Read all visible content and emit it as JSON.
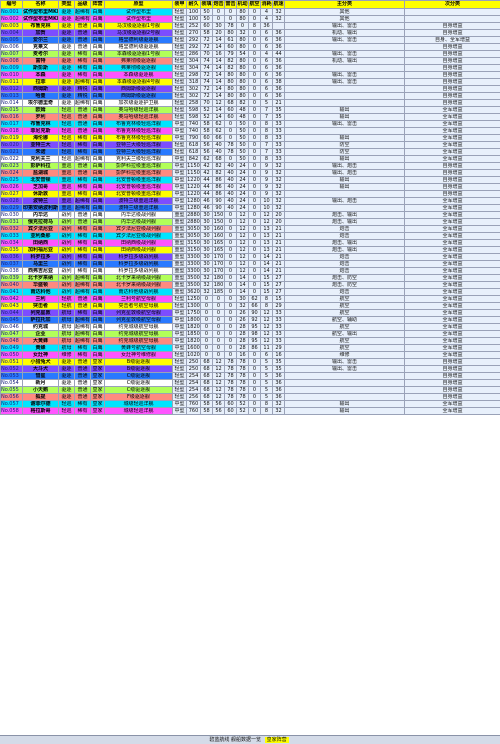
{
  "sheet": {
    "headers": [
      "编号",
      "名称",
      "类型",
      "品级",
      "阵营",
      "原型",
      "装甲",
      "耐久",
      "装填",
      "炮击",
      "雷击",
      "机动",
      "航空",
      "消耗",
      "航速",
      "主分类",
      "次分类"
    ],
    "rows": [
      [
        "No.001",
        "试作型布里MKII",
        "驱逐",
        "超稀有",
        "白鹰",
        "试作型布里",
        "轻型",
        "100",
        "50",
        "0",
        "0",
        "80",
        "0",
        "4",
        "32",
        "其他",
        ""
      ],
      [
        "No.002",
        "试作型布里MKIII",
        "驱逐",
        "超稀有",
        "白鹰",
        "试作型布里",
        "轻型",
        "100",
        "50",
        "0",
        "0",
        "80",
        "0",
        "4",
        "32",
        "其他",
        ""
      ],
      [
        "No.003",
        "布鲁克林",
        "驱逐",
        "普通",
        "白鹰",
        "马汉级驱逐舰1号舰",
        "轻型",
        "252",
        "60",
        "30",
        "78",
        "0",
        "8",
        "36",
        "",
        "输出、雷击",
        "自身增益"
      ],
      [
        "No.004",
        "加贺",
        "驱逐",
        "普通",
        "白鹰",
        "马汉级驱逐舰2号舰",
        "轻型",
        "270",
        "58",
        "20",
        "80",
        "32",
        "0",
        "6",
        "36",
        "机动、输出",
        "自身增益"
      ],
      [
        "No.005",
        "爱尔兰",
        "驱逐",
        "普通",
        "白鹰",
        "格里德利级驱逐舰",
        "轻型",
        "292",
        "72",
        "14",
        "61",
        "80",
        "0",
        "6",
        "36",
        "输出、雷击",
        "自身、全军增益"
      ],
      [
        "No.006",
        "克莱文",
        "驱逐",
        "普通",
        "白鹰",
        "格里德利级驱逐舰",
        "轻型",
        "292",
        "72",
        "14",
        "60",
        "80",
        "0",
        "6",
        "36",
        "",
        "自身增益"
      ],
      [
        "No.007",
        "麦考尔",
        "驱逐",
        "稀有",
        "白鹰",
        "本森级驱逐舰1号舰",
        "轻型",
        "286",
        "70",
        "16",
        "79",
        "54",
        "0",
        "4",
        "44",
        "输出、雷击",
        "自身增益"
      ],
      [
        "No.008",
        "富特",
        "驱逐",
        "稀有",
        "白鹰",
        "弗莱彻级驱逐舰",
        "轻型",
        "304",
        "74",
        "14",
        "82",
        "80",
        "0",
        "6",
        "36",
        "机动、输出",
        "自身增益"
      ],
      [
        "No.009",
        "斯彭斯",
        "驱逐",
        "稀有",
        "白鹰",
        "弗莱彻级驱逐舰",
        "轻型",
        "304",
        "74",
        "14",
        "82",
        "80",
        "0",
        "6",
        "36",
        "",
        "自身增益"
      ],
      [
        "No.010",
        "本森",
        "驱逐",
        "稀有",
        "白鹰",
        "本森级驱逐舰",
        "轻型",
        "298",
        "72",
        "14",
        "80",
        "80",
        "0",
        "6",
        "36",
        "输出、雷击",
        "自身增益"
      ],
      [
        "No.011",
        "拉菲",
        "驱逐",
        "超稀有",
        "白鹰",
        "本森级驱逐舰4号舰",
        "轻型",
        "318",
        "74",
        "14",
        "80",
        "80",
        "0",
        "6",
        "38",
        "输出、雷击",
        "自身增益"
      ],
      [
        "No.012",
        "西姆斯",
        "驱逐",
        "精锐",
        "白鹰",
        "西姆斯级驱逐舰",
        "轻型",
        "302",
        "72",
        "14",
        "80",
        "80",
        "0",
        "6",
        "36",
        "",
        "自身增益"
      ],
      [
        "No.013",
        "哈曼",
        "驱逐",
        "精锐",
        "白鹰",
        "西姆斯级驱逐舰",
        "轻型",
        "302",
        "72",
        "14",
        "80",
        "80",
        "0",
        "6",
        "36",
        "",
        "自身增益"
      ],
      [
        "No.014",
        "埃尔德里奇",
        "驱逐",
        "超稀有",
        "白鹰",
        "加农级驱逐护卫舰",
        "轻型",
        "258",
        "70",
        "12",
        "68",
        "82",
        "0",
        "5",
        "21",
        "",
        "自身增益"
      ],
      [
        "No.015",
        "欧姆",
        "轻巡",
        "普通",
        "白鹰",
        "奥马哈级轻巡洋舰",
        "轻型",
        "598",
        "52",
        "14",
        "60",
        "48",
        "0",
        "7",
        "35",
        "输出",
        "全军增益"
      ],
      [
        "No.016",
        "罗利",
        "轻巡",
        "普通",
        "白鹰",
        "奥马哈级轻巡洋舰",
        "轻型",
        "598",
        "52",
        "14",
        "60",
        "48",
        "0",
        "7",
        "35",
        "输出",
        "全军增益"
      ],
      [
        "No.017",
        "布鲁克林",
        "轻巡",
        "普通",
        "白鹰",
        "布鲁克林级轻巡洋舰",
        "中型",
        "740",
        "58",
        "62",
        "0",
        "50",
        "0",
        "8",
        "33",
        "输出、雷击",
        "全军增益"
      ],
      [
        "No.018",
        "菲尼克斯",
        "轻巡",
        "普通",
        "白鹰",
        "布鲁克林级轻巡洋舰",
        "中型",
        "740",
        "58",
        "62",
        "0",
        "50",
        "0",
        "8",
        "33",
        "",
        "全军增益"
      ],
      [
        "No.019",
        "海伦娜",
        "轻巡",
        "稀有",
        "白鹰",
        "布鲁克林级轻巡洋舰",
        "中型",
        "790",
        "60",
        "66",
        "0",
        "50",
        "0",
        "8",
        "33",
        "输出",
        "全军增益"
      ],
      [
        "No.020",
        "亚特兰大",
        "轻巡",
        "稀有",
        "白鹰",
        "亚特兰大级轻巡洋舰",
        "轻型",
        "618",
        "56",
        "40",
        "78",
        "50",
        "0",
        "7",
        "33",
        "防空",
        "全军增益"
      ],
      [
        "No.021",
        "朱诺",
        "轻巡",
        "稀有",
        "白鹰",
        "亚特兰大级轻巡洋舰",
        "轻型",
        "618",
        "56",
        "40",
        "78",
        "50",
        "0",
        "7",
        "33",
        "防空",
        "全军增益"
      ],
      [
        "No.022",
        "克利夫兰",
        "轻巡",
        "超稀有",
        "白鹰",
        "克利夫兰级轻巡洋舰",
        "中型",
        "842",
        "62",
        "68",
        "0",
        "50",
        "0",
        "8",
        "33",
        "输出",
        "全军增益"
      ],
      [
        "No.023",
        "彭萨科拉",
        "重巡",
        "普通",
        "白鹰",
        "彭萨科拉级重巡洋舰",
        "中型",
        "1150",
        "42",
        "82",
        "40",
        "24",
        "0",
        "9",
        "32",
        "输出、炮击",
        "自身增益"
      ],
      [
        "No.024",
        "盐湖城",
        "重巡",
        "普通",
        "白鹰",
        "彭萨科拉级重巡洋舰",
        "中型",
        "1150",
        "42",
        "82",
        "40",
        "24",
        "0",
        "9",
        "32",
        "输出、炮击",
        "自身增益"
      ],
      [
        "No.025",
        "北安普顿",
        "重巡",
        "稀有",
        "白鹰",
        "北安普顿级重巡洋舰",
        "中型",
        "1220",
        "44",
        "86",
        "40",
        "24",
        "0",
        "9",
        "32",
        "输出",
        "自身增益"
      ],
      [
        "No.026",
        "芝加哥",
        "重巡",
        "稀有",
        "白鹰",
        "北安普顿级重巡洋舰",
        "中型",
        "1220",
        "44",
        "86",
        "40",
        "24",
        "0",
        "9",
        "32",
        "输出",
        "自身增益"
      ],
      [
        "No.027",
        "休斯敦",
        "重巡",
        "稀有",
        "白鹰",
        "北安普顿级重巡洋舰",
        "中型",
        "1220",
        "44",
        "86",
        "40",
        "24",
        "0",
        "9",
        "32",
        "",
        "自身增益"
      ],
      [
        "No.028",
        "波特兰",
        "重巡",
        "超稀有",
        "白鹰",
        "波特兰级重巡洋舰",
        "中型",
        "1280",
        "46",
        "90",
        "40",
        "24",
        "0",
        "10",
        "32",
        "输出、炮击",
        "全军增益"
      ],
      [
        "No.029",
        "印第安纳波利斯",
        "重巡",
        "超稀有",
        "白鹰",
        "波特兰级重巡洋舰",
        "中型",
        "1280",
        "46",
        "90",
        "40",
        "24",
        "0",
        "10",
        "32",
        "",
        "全军增益"
      ],
      [
        "No.030",
        "内华达",
        "战列",
        "普通",
        "白鹰",
        "内华达级战列舰",
        "重型",
        "2880",
        "30",
        "150",
        "0",
        "12",
        "0",
        "12",
        "20",
        "炮击、输出",
        "全军增益"
      ],
      [
        "No.031",
        "俄克拉荷马",
        "战列",
        "普通",
        "白鹰",
        "内华达级战列舰",
        "重型",
        "2880",
        "30",
        "150",
        "0",
        "12",
        "0",
        "12",
        "20",
        "炮击、输出",
        "全军增益"
      ],
      [
        "No.032",
        "宾夕法尼亚",
        "战列",
        "稀有",
        "白鹰",
        "宾夕法尼亚级战列舰",
        "重型",
        "3050",
        "30",
        "160",
        "0",
        "12",
        "0",
        "13",
        "21",
        "炮击",
        "全军增益"
      ],
      [
        "No.033",
        "亚利桑那",
        "战列",
        "稀有",
        "白鹰",
        "宾夕法尼亚级战列舰",
        "重型",
        "3050",
        "30",
        "160",
        "0",
        "12",
        "0",
        "13",
        "21",
        "炮击",
        "全军增益"
      ],
      [
        "No.034",
        "田纳西",
        "战列",
        "稀有",
        "白鹰",
        "田纳西级战列舰",
        "重型",
        "3150",
        "30",
        "165",
        "0",
        "12",
        "0",
        "13",
        "21",
        "炮击、输出",
        "全军增益"
      ],
      [
        "No.035",
        "加利福尼亚",
        "战列",
        "稀有",
        "白鹰",
        "田纳西级战列舰",
        "重型",
        "3150",
        "30",
        "165",
        "0",
        "12",
        "0",
        "13",
        "21",
        "炮击、输出",
        "全军增益"
      ],
      [
        "No.036",
        "科罗拉多",
        "战列",
        "稀有",
        "白鹰",
        "科罗拉多级战列舰",
        "重型",
        "3300",
        "30",
        "170",
        "0",
        "12",
        "0",
        "14",
        "21",
        "炮击",
        "全军增益"
      ],
      [
        "No.037",
        "马里兰",
        "战列",
        "稀有",
        "白鹰",
        "科罗拉多级战列舰",
        "重型",
        "3300",
        "30",
        "170",
        "0",
        "12",
        "0",
        "14",
        "21",
        "炮击",
        "全军增益"
      ],
      [
        "No.038",
        "西弗吉尼亚",
        "战列",
        "稀有",
        "白鹰",
        "科罗拉多级战列舰",
        "重型",
        "3300",
        "30",
        "170",
        "0",
        "12",
        "0",
        "14",
        "21",
        "炮击",
        "全军增益"
      ],
      [
        "No.039",
        "北卡罗来纳",
        "战列",
        "超稀有",
        "白鹰",
        "北卡罗来纳级战列舰",
        "重型",
        "3500",
        "32",
        "180",
        "0",
        "14",
        "0",
        "15",
        "27",
        "炮击、防空",
        "全军增益"
      ],
      [
        "No.040",
        "华盛顿",
        "战列",
        "超稀有",
        "白鹰",
        "北卡罗来纳级战列舰",
        "重型",
        "3500",
        "32",
        "180",
        "0",
        "14",
        "0",
        "15",
        "27",
        "炮击、防空",
        "全军增益"
      ],
      [
        "No.041",
        "南达科他",
        "战列",
        "超稀有",
        "白鹰",
        "南达科他级战列舰",
        "重型",
        "3620",
        "32",
        "185",
        "0",
        "14",
        "0",
        "15",
        "27",
        "炮击",
        "全军增益"
      ],
      [
        "No.042",
        "兰利",
        "轻航",
        "普通",
        "白鹰",
        "兰利号航空母舰",
        "轻型",
        "1250",
        "0",
        "0",
        "0",
        "30",
        "62",
        "8",
        "15",
        "航空",
        "全军增益"
      ],
      [
        "No.043",
        "突击者",
        "轻航",
        "普通",
        "白鹰",
        "突击者号航空母舰",
        "轻型",
        "1300",
        "0",
        "0",
        "0",
        "32",
        "66",
        "8",
        "29",
        "航空",
        "全军增益"
      ],
      [
        "No.044",
        "列克星敦",
        "航母",
        "稀有",
        "白鹰",
        "列克星敦级航空母舰",
        "中型",
        "1750",
        "0",
        "0",
        "0",
        "26",
        "90",
        "12",
        "33",
        "航空",
        "全军增益"
      ],
      [
        "No.045",
        "萨拉托加",
        "航母",
        "超稀有",
        "白鹰",
        "列克星敦级航空母舰",
        "中型",
        "1800",
        "0",
        "0",
        "0",
        "26",
        "92",
        "12",
        "33",
        "航空、辅助",
        "全军增益"
      ],
      [
        "No.046",
        "约克城",
        "航母",
        "超稀有",
        "白鹰",
        "约克城级航空母舰",
        "中型",
        "1820",
        "0",
        "0",
        "0",
        "28",
        "95",
        "12",
        "33",
        "航空",
        "全军增益"
      ],
      [
        "No.047",
        "企业",
        "航母",
        "超稀有",
        "白鹰",
        "约克城级航空母舰",
        "中型",
        "1850",
        "0",
        "0",
        "0",
        "28",
        "98",
        "12",
        "33",
        "航空、输出",
        "全军增益"
      ],
      [
        "No.048",
        "大黄蜂",
        "航母",
        "超稀有",
        "白鹰",
        "约克城级航空母舰",
        "中型",
        "1820",
        "0",
        "0",
        "0",
        "28",
        "95",
        "12",
        "33",
        "航空",
        "全军增益"
      ],
      [
        "No.049",
        "黄蜂",
        "航母",
        "稀有",
        "白鹰",
        "黄蜂号航空母舰",
        "中型",
        "1600",
        "0",
        "0",
        "0",
        "28",
        "86",
        "11",
        "29",
        "航空",
        "全军增益"
      ],
      [
        "No.050",
        "女灶神",
        "维修",
        "稀有",
        "白鹰",
        "女灶神号维修舰",
        "轻型",
        "1020",
        "0",
        "0",
        "0",
        "16",
        "0",
        "6",
        "16",
        "维修",
        "全军增益"
      ],
      [
        "No.051",
        "小猎兔犬",
        "驱逐",
        "普通",
        "皇家",
        "B级驱逐舰",
        "轻型",
        "250",
        "68",
        "12",
        "78",
        "78",
        "0",
        "5",
        "35",
        "输出、雷击",
        "自身增益"
      ],
      [
        "No.052",
        "大斗犬",
        "驱逐",
        "普通",
        "皇家",
        "B级驱逐舰",
        "轻型",
        "250",
        "68",
        "12",
        "78",
        "78",
        "0",
        "5",
        "35",
        "输出、雷击",
        "自身增益"
      ],
      [
        "No.053",
        "彗星",
        "驱逐",
        "普通",
        "皇家",
        "C级驱逐舰",
        "轻型",
        "254",
        "68",
        "12",
        "78",
        "78",
        "0",
        "5",
        "36",
        "",
        "自身增益"
      ],
      [
        "No.054",
        "新月",
        "驱逐",
        "普通",
        "皇家",
        "C级驱逐舰",
        "轻型",
        "254",
        "68",
        "12",
        "78",
        "78",
        "0",
        "5",
        "36",
        "",
        "自身增益"
      ],
      [
        "No.055",
        "小天鹅",
        "驱逐",
        "普通",
        "皇家",
        "C级驱逐舰",
        "轻型",
        "254",
        "68",
        "12",
        "78",
        "78",
        "0",
        "5",
        "36",
        "",
        "自身增益"
      ],
      [
        "No.056",
        "狐提",
        "驱逐",
        "普通",
        "皇家",
        "F级驱逐舰",
        "轻型",
        "256",
        "68",
        "12",
        "78",
        "78",
        "0",
        "5",
        "36",
        "",
        "自身增益"
      ],
      [
        "No.057",
        "谢菲尔德",
        "轻巡",
        "稀有",
        "皇家",
        "城级轻巡洋舰",
        "中型",
        "760",
        "58",
        "56",
        "60",
        "52",
        "0",
        "8",
        "32",
        "输出",
        "全军增益"
      ],
      [
        "No.058",
        "格拉斯哥",
        "轻巡",
        "稀有",
        "皇家",
        "城级轻巡洋舰",
        "中型",
        "760",
        "58",
        "56",
        "60",
        "52",
        "0",
        "8",
        "32",
        "输出",
        "全军增益"
      ]
    ]
  },
  "status_bar": {
    "text": "碧蓝航线 舰船数据一览",
    "tag": "皇家阵营"
  },
  "colors": {
    "header_bg": "#ffff00",
    "grid": "#9aa2b8",
    "cell_bg": "#e8f0fb",
    "row_palette": [
      "#00e5ff",
      "#ff55ff",
      "#ffff00",
      "#7c4dff",
      "#2979ff",
      "#ffffff",
      "#b2ff59",
      "#ff8a80"
    ]
  }
}
